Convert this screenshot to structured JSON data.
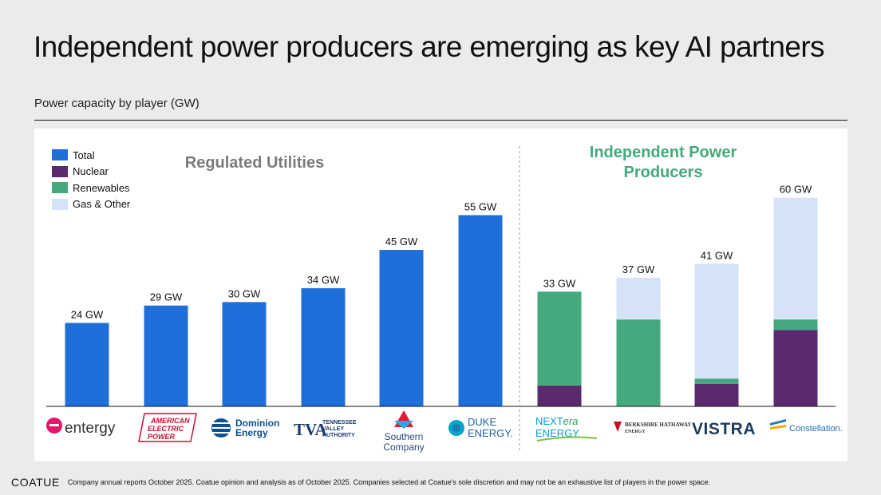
{
  "title": "Independent power producers are emerging as key AI partners",
  "subtitle": "Power capacity by player (GW)",
  "groups": {
    "regulated": "Regulated Utilities",
    "ipp": "Independent Power Producers"
  },
  "footer": {
    "brand": "COATUE",
    "note": "Company annual reports October 2025.  Coatue opinion and analysis as of October 2025.  Companies selected at Coatue's sole discretion and may not be an exhaustive list of players in the power space."
  },
  "colors": {
    "total": "#1f6fdb",
    "nuclear": "#5b2a6e",
    "renewables": "#44a97c",
    "gas_other": "#d4e3f7"
  },
  "chart_data": {
    "type": "bar",
    "stacked": true,
    "title": "Power capacity by player (GW)",
    "categories": [
      "entergy",
      "AMERICAN ELECTRIC POWER",
      "Dominion Energy",
      "TVA TENNESSEE VALLEY AUTHORITY",
      "Southern Company",
      "DUKE ENERGY.",
      "NEXTera ENERGY",
      "Berkshire Hathaway Energy",
      "VISTRA",
      "Constellation"
    ],
    "legend": [
      "Total",
      "Nuclear",
      "Renewables",
      "Gas & Other"
    ],
    "legend_position": "top-left",
    "ylim": [
      0,
      62
    ],
    "grid": false,
    "data_labels": [
      "24 GW",
      "29 GW",
      "30 GW",
      "34 GW",
      "45 GW",
      "55 GW",
      "33 GW",
      "37 GW",
      "41 GW",
      "60 GW"
    ],
    "series": [
      {
        "name": "Total",
        "values": [
          24,
          29,
          30,
          34,
          45,
          55,
          0,
          0,
          0,
          0
        ]
      },
      {
        "name": "Nuclear",
        "values": [
          0,
          0,
          0,
          0,
          0,
          0,
          6,
          0,
          6.5,
          22
        ]
      },
      {
        "name": "Renewables",
        "values": [
          0,
          0,
          0,
          0,
          0,
          0,
          27,
          25,
          1.5,
          3
        ]
      },
      {
        "name": "Gas & Other",
        "values": [
          0,
          0,
          0,
          0,
          0,
          0,
          0,
          12,
          33,
          35
        ]
      }
    ]
  }
}
